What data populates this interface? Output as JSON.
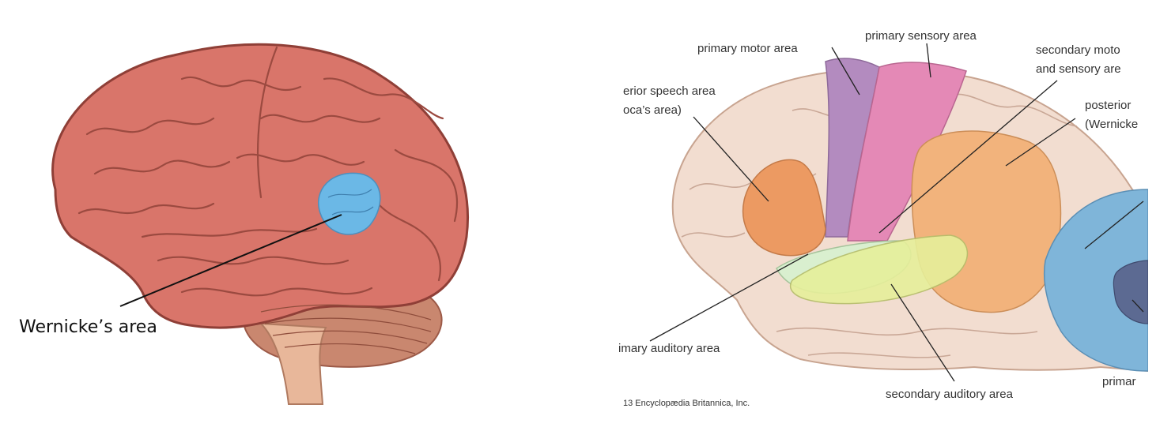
{
  "left_figure": {
    "label": "Wernicke’s area",
    "highlight_color": "#6bb8e6",
    "brain_color": "#d9756a"
  },
  "right_figure": {
    "labels": {
      "primary_motor": "primary motor area",
      "primary_sensory": "primary sensory area",
      "secondary_motor_1": "secondary moto",
      "secondary_motor_2": "and sensory are",
      "anterior_speech_1": "erior speech area",
      "anterior_speech_2": "oca’s area)",
      "posterior_1": "posterior",
      "posterior_2": "(Wernicke",
      "primary_auditory": "imary auditory area",
      "secondary_auditory": "secondary auditory area",
      "primary_visual": "primar",
      "copyright": "13 Encyclopædia Britannica, Inc."
    },
    "region_colors": {
      "motor": "#b38bbf",
      "sensory": "#e489b6",
      "broca": "#ec9a62",
      "wernicke": "#f2b37c",
      "primary_auditory": "#d9efcf",
      "secondary_auditory": "#e6ef9a",
      "visual": "#7fb5d9",
      "visual_primary": "#5c6a92"
    }
  }
}
